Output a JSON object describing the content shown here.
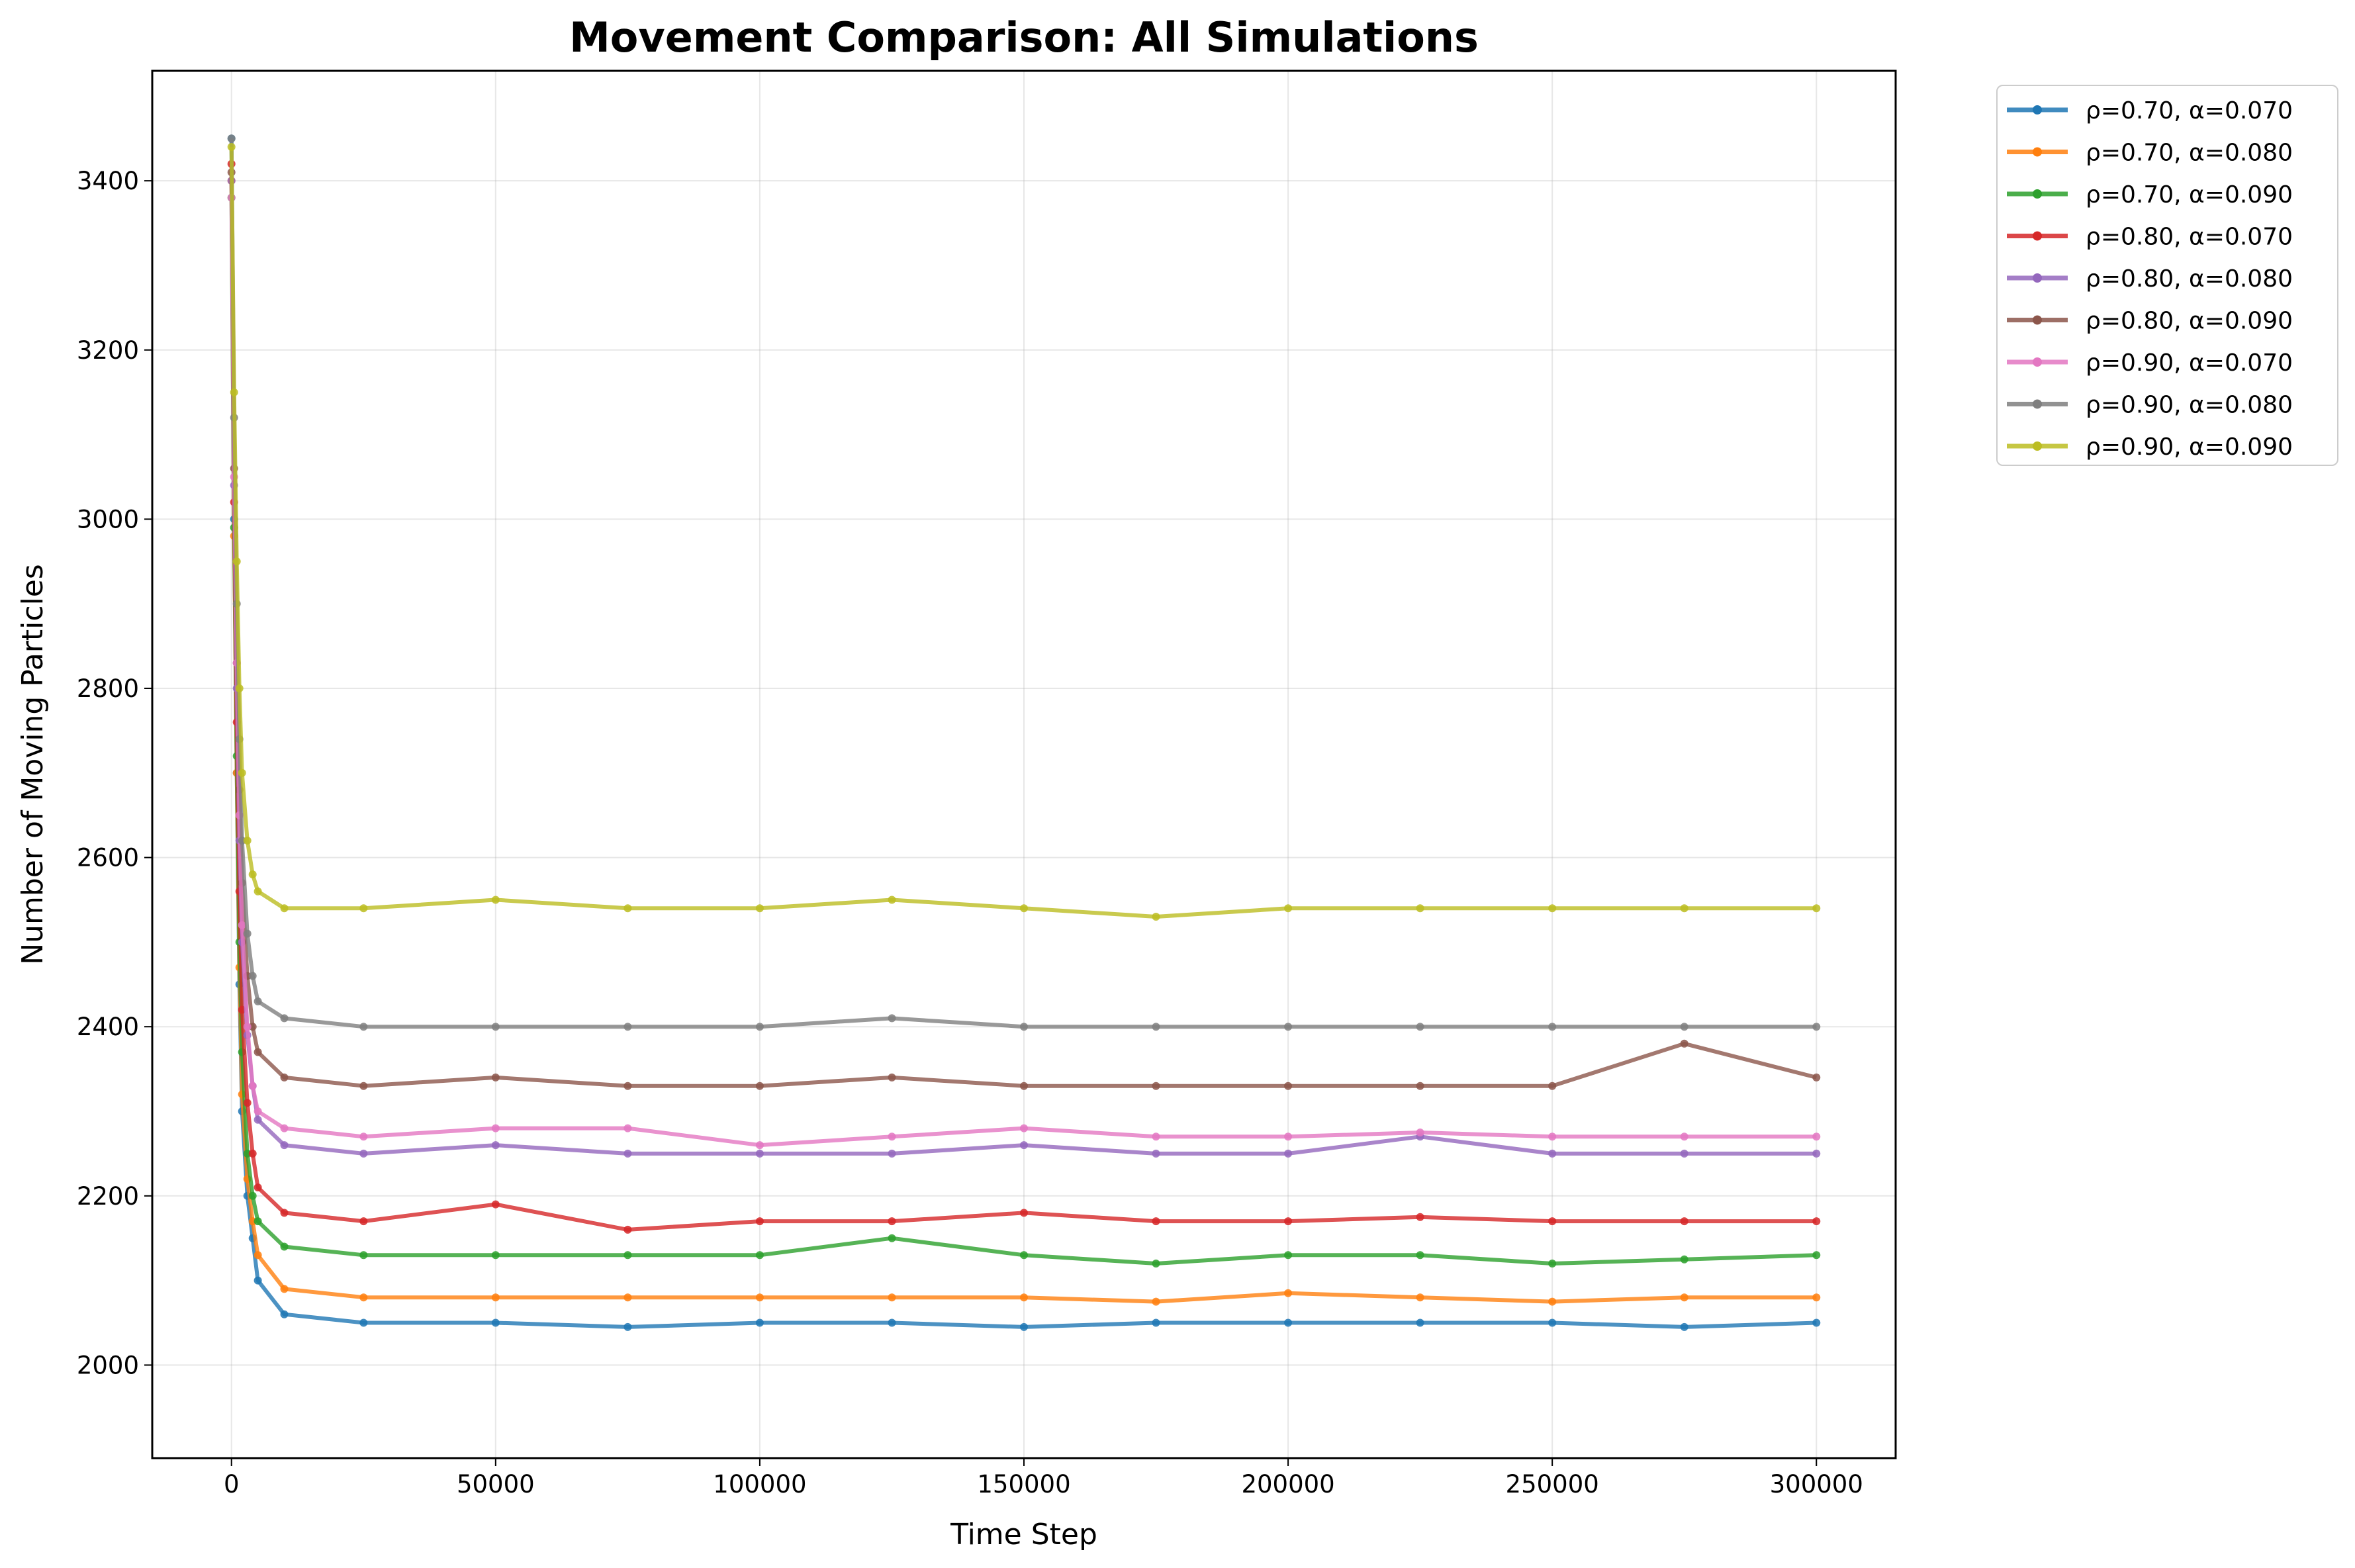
{
  "chart_data": {
    "type": "line",
    "title": "Movement Comparison: All Simulations",
    "xlabel": "Time Step",
    "ylabel": "Number of Moving Particles",
    "xlim": [
      -15000,
      315000
    ],
    "ylim": [
      1890,
      3530
    ],
    "xticks": [
      0,
      50000,
      100000,
      150000,
      200000,
      250000,
      300000
    ],
    "yticks": [
      2000,
      2200,
      2400,
      2600,
      2800,
      3000,
      3200,
      3400
    ],
    "grid": true,
    "legend_position": "outside-top-right",
    "series": [
      {
        "name": "ρ=0.70, α=0.070",
        "color": "#1f77b4",
        "x": [
          0,
          500,
          1000,
          1500,
          2000,
          3000,
          4000,
          5000,
          10000,
          25000,
          50000,
          75000,
          100000,
          125000,
          150000,
          175000,
          200000,
          225000,
          250000,
          275000,
          300000
        ],
        "y": [
          3450,
          3000,
          2700,
          2450,
          2300,
          2200,
          2150,
          2100,
          2060,
          2050,
          2050,
          2045,
          2050,
          2050,
          2045,
          2050,
          2050,
          2050,
          2050,
          2045,
          2050
        ]
      },
      {
        "name": "ρ=0.70, α=0.080",
        "color": "#ff7f0e",
        "x": [
          0,
          500,
          1000,
          1500,
          2000,
          3000,
          4000,
          5000,
          10000,
          25000,
          50000,
          75000,
          100000,
          125000,
          150000,
          175000,
          200000,
          225000,
          250000,
          275000,
          300000
        ],
        "y": [
          3400,
          2980,
          2700,
          2470,
          2320,
          2220,
          2170,
          2130,
          2090,
          2080,
          2080,
          2080,
          2080,
          2080,
          2080,
          2075,
          2085,
          2080,
          2075,
          2080,
          2080
        ]
      },
      {
        "name": "ρ=0.70, α=0.090",
        "color": "#2ca02c",
        "x": [
          0,
          500,
          1000,
          1500,
          2000,
          3000,
          4000,
          5000,
          10000,
          25000,
          50000,
          75000,
          100000,
          125000,
          150000,
          175000,
          200000,
          225000,
          250000,
          275000,
          300000
        ],
        "y": [
          3380,
          2990,
          2720,
          2500,
          2370,
          2250,
          2200,
          2170,
          2140,
          2130,
          2130,
          2130,
          2130,
          2150,
          2130,
          2120,
          2130,
          2130,
          2120,
          2125,
          2130
        ]
      },
      {
        "name": "ρ=0.80, α=0.070",
        "color": "#d62728",
        "x": [
          0,
          500,
          1000,
          1500,
          2000,
          3000,
          4000,
          5000,
          10000,
          25000,
          50000,
          75000,
          100000,
          125000,
          150000,
          175000,
          200000,
          225000,
          250000,
          275000,
          300000
        ],
        "y": [
          3420,
          3020,
          2760,
          2560,
          2420,
          2310,
          2250,
          2210,
          2180,
          2170,
          2190,
          2160,
          2170,
          2170,
          2180,
          2170,
          2170,
          2175,
          2170,
          2170,
          2170
        ]
      },
      {
        "name": "ρ=0.80, α=0.080",
        "color": "#9467bd",
        "x": [
          0,
          500,
          1000,
          1500,
          2000,
          3000,
          4000,
          5000,
          10000,
          25000,
          50000,
          75000,
          100000,
          125000,
          150000,
          175000,
          200000,
          225000,
          250000,
          275000,
          300000
        ],
        "y": [
          3400,
          3040,
          2800,
          2620,
          2500,
          2390,
          2330,
          2290,
          2260,
          2250,
          2260,
          2250,
          2250,
          2250,
          2260,
          2250,
          2250,
          2270,
          2250,
          2250,
          2250
        ]
      },
      {
        "name": "ρ=0.80, α=0.090",
        "color": "#8c564b",
        "x": [
          0,
          500,
          1000,
          1500,
          2000,
          3000,
          4000,
          5000,
          10000,
          25000,
          50000,
          75000,
          100000,
          125000,
          150000,
          175000,
          200000,
          225000,
          250000,
          275000,
          300000
        ],
        "y": [
          3410,
          3060,
          2830,
          2680,
          2570,
          2460,
          2400,
          2370,
          2340,
          2330,
          2340,
          2330,
          2330,
          2340,
          2330,
          2330,
          2330,
          2330,
          2330,
          2380,
          2340
        ]
      },
      {
        "name": "ρ=0.90, α=0.070",
        "color": "#e377c2",
        "x": [
          0,
          500,
          1000,
          1500,
          2000,
          3000,
          4000,
          5000,
          10000,
          25000,
          50000,
          75000,
          100000,
          125000,
          150000,
          175000,
          200000,
          225000,
          250000,
          275000,
          300000
        ],
        "y": [
          3380,
          3050,
          2830,
          2650,
          2520,
          2400,
          2330,
          2300,
          2280,
          2270,
          2280,
          2280,
          2260,
          2270,
          2280,
          2270,
          2270,
          2275,
          2270,
          2270,
          2270
        ]
      },
      {
        "name": "ρ=0.90, α=0.080",
        "color": "#7f7f7f",
        "x": [
          0,
          500,
          1000,
          1500,
          2000,
          3000,
          4000,
          5000,
          10000,
          25000,
          50000,
          75000,
          100000,
          125000,
          150000,
          175000,
          200000,
          225000,
          250000,
          275000,
          300000
        ],
        "y": [
          3450,
          3120,
          2900,
          2740,
          2620,
          2510,
          2460,
          2430,
          2410,
          2400,
          2400,
          2400,
          2400,
          2410,
          2400,
          2400,
          2400,
          2400,
          2400,
          2400,
          2400
        ]
      },
      {
        "name": "ρ=0.90, α=0.090",
        "color": "#bcbd22",
        "x": [
          0,
          500,
          1000,
          1500,
          2000,
          3000,
          4000,
          5000,
          10000,
          25000,
          50000,
          75000,
          100000,
          125000,
          150000,
          175000,
          200000,
          225000,
          250000,
          275000,
          300000
        ],
        "y": [
          3440,
          3150,
          2950,
          2800,
          2700,
          2620,
          2580,
          2560,
          2540,
          2540,
          2550,
          2540,
          2540,
          2550,
          2540,
          2530,
          2540,
          2540,
          2540,
          2540,
          2540
        ]
      }
    ]
  }
}
